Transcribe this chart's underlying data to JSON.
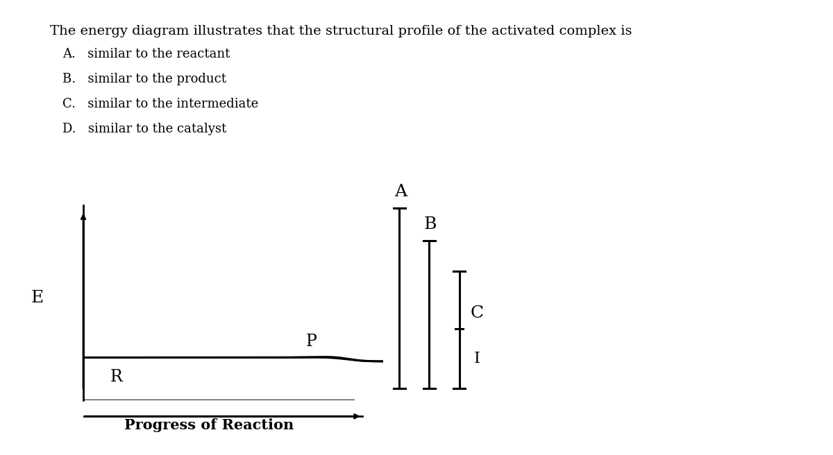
{
  "title_text": "The energy diagram illustrates that the structural profile of the activated complex is",
  "options": [
    "A.   similar to the reactant",
    "B.   similar to the product",
    "C.   similar to the intermediate",
    "D.   similar to the catalyst"
  ],
  "xlabel": "Progress of Reaction",
  "ylabel": "E",
  "bg_color": "#ffffff",
  "text_color": "#000000",
  "curve_color": "#000000",
  "label_R": "R",
  "label_P": "P",
  "label_A": "A",
  "label_B": "B",
  "label_C": "C",
  "label_I": "I",
  "title_fontsize": 14,
  "option_fontsize": 13,
  "axis_label_fontsize": 15,
  "diagram_label_fontsize": 16
}
